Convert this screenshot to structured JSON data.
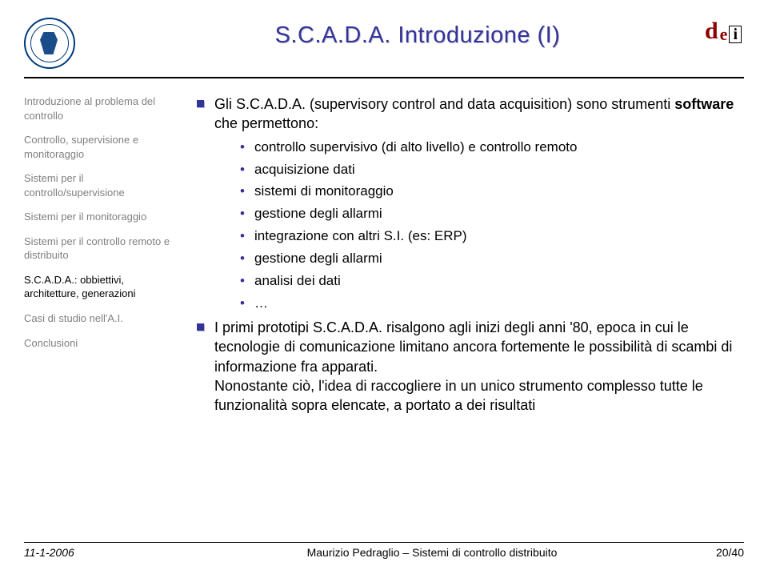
{
  "colors": {
    "accent": "#333399",
    "muted": "#808080",
    "text": "#000000",
    "logo_uni": "#003a7d",
    "logo_dei": "#8b0000",
    "background": "#ffffff"
  },
  "typography": {
    "title_fontsize": 29,
    "body_fontsize": 18,
    "sub_fontsize": 17,
    "sidebar_fontsize": 13,
    "footer_fontsize": 14
  },
  "title": "S.C.A.D.A. Introduzione (I)",
  "dei_logo": {
    "d": "d",
    "e": "e",
    "i": "i"
  },
  "sidebar": {
    "items": [
      {
        "label": "Introduzione al problema del controllo",
        "active": false
      },
      {
        "label": "Controllo, supervisione e monitoraggio",
        "active": false
      },
      {
        "label": "Sistemi per il controllo/supervisione",
        "active": false
      },
      {
        "label": "Sistemi per il monitoraggio",
        "active": false
      },
      {
        "label": "Sistemi per il controllo remoto e distribuito",
        "active": false
      },
      {
        "label": "S.C.A.D.A.: obbiettivi, architetture, generazioni",
        "active": true
      },
      {
        "label": "Casi di studio nell'A.I.",
        "active": false
      },
      {
        "label": "Conclusioni",
        "active": false
      }
    ]
  },
  "content": {
    "lead_pre": "Gli S.C.A.D.A. (supervisory control and data acquisition) sono strumenti ",
    "lead_bold": "software",
    "lead_post": " che permettono:",
    "sub_items": [
      "controllo supervisivo (di alto livello) e controllo remoto",
      "acquisizione dati",
      "sistemi di monitoraggio",
      "gestione degli allarmi",
      "integrazione con altri S.I. (es: ERP)",
      "gestione degli allarmi",
      "analisi dei dati",
      "…"
    ],
    "para2": "I primi prototipi S.C.A.D.A. risalgono agli inizi degli anni '80, epoca in cui le tecnologie di comunicazione limitano ancora fortemente le possibilità di scambi di informazione fra apparati.",
    "para3": "Nonostante ciò, l'idea di raccogliere in un unico strumento complesso tutte le funzionalità sopra elencate, a portato a dei risultati"
  },
  "footer": {
    "date": "11-1-2006",
    "author": "Maurizio Pedraglio – Sistemi di controllo distribuito",
    "page": "20/40"
  }
}
